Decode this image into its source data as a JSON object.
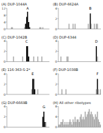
{
  "chart_data": [
    {
      "type": "bar",
      "title": "(A) DUP-1044A",
      "categories": [
        null,
        null,
        null,
        null,
        null,
        null,
        null,
        null,
        null,
        null,
        null,
        null,
        null,
        null,
        null,
        null,
        null,
        null,
        null,
        null,
        null,
        null,
        null,
        null,
        null,
        null,
        null,
        null,
        null,
        null,
        null,
        null,
        null,
        null,
        null,
        null,
        null,
        null,
        null,
        null,
        null,
        null
      ],
      "values": [
        0,
        0,
        0,
        0,
        1,
        1,
        0,
        0,
        0,
        0,
        0,
        0,
        0,
        0,
        0,
        0,
        0,
        1,
        3,
        7,
        10,
        4,
        1,
        0,
        0,
        0,
        0,
        0,
        0,
        0,
        0,
        0,
        1,
        1,
        0,
        1,
        0,
        0,
        0,
        0,
        0,
        0
      ],
      "colors": [
        "#aaaaaa",
        "#aaaaaa",
        "#aaaaaa",
        "#aaaaaa",
        "#aaaaaa",
        "#aaaaaa",
        "#aaaaaa",
        "#aaaaaa",
        "#aaaaaa",
        "#aaaaaa",
        "#aaaaaa",
        "#aaaaaa",
        "#aaaaaa",
        "#aaaaaa",
        "#aaaaaa",
        "#aaaaaa",
        "#aaaaaa",
        "#aaaaaa",
        "#000000",
        "#000000",
        "#000000",
        "#000000",
        "#000000",
        "#aaaaaa",
        "#aaaaaa",
        "#aaaaaa",
        "#aaaaaa",
        "#aaaaaa",
        "#aaaaaa",
        "#aaaaaa",
        "#aaaaaa",
        "#aaaaaa",
        "#aaaaaa",
        "#aaaaaa",
        "#aaaaaa",
        "#aaaaaa",
        "#aaaaaa",
        "#aaaaaa",
        "#aaaaaa",
        "#aaaaaa",
        "#aaaaaa",
        "#aaaaaa"
      ],
      "ylim": [
        0,
        12
      ],
      "yticks": [
        0,
        4,
        8,
        12
      ],
      "tick_labels": "y",
      "annotations": [
        {
          "text": "A",
          "x": 20
        }
      ]
    },
    {
      "type": "bar",
      "title": "(B) DUP-6624A",
      "categories": [
        null,
        null,
        null,
        null,
        null,
        null,
        null,
        null,
        null,
        null,
        null,
        null,
        null,
        null,
        null,
        null,
        null,
        null,
        null,
        null,
        null,
        null,
        null,
        null,
        null,
        null,
        null,
        null,
        null,
        null,
        null,
        null,
        null,
        null,
        null,
        null,
        null,
        null,
        null,
        null,
        null,
        null
      ],
      "values": [
        0,
        0,
        0,
        0,
        0,
        0,
        0,
        0,
        0,
        0,
        1,
        0,
        0,
        0,
        1,
        0,
        1,
        0,
        0,
        0,
        0,
        0,
        0,
        0,
        0,
        0,
        0,
        0,
        0,
        1,
        0,
        3,
        1,
        0,
        0,
        1,
        0,
        1,
        1,
        0,
        0,
        0
      ],
      "colors": [
        "#aaaaaa",
        "#aaaaaa",
        "#aaaaaa",
        "#aaaaaa",
        "#aaaaaa",
        "#aaaaaa",
        "#aaaaaa",
        "#aaaaaa",
        "#aaaaaa",
        "#aaaaaa",
        "#aaaaaa",
        "#aaaaaa",
        "#aaaaaa",
        "#aaaaaa",
        "#aaaaaa",
        "#aaaaaa",
        "#aaaaaa",
        "#aaaaaa",
        "#aaaaaa",
        "#aaaaaa",
        "#aaaaaa",
        "#aaaaaa",
        "#aaaaaa",
        "#aaaaaa",
        "#aaaaaa",
        "#aaaaaa",
        "#aaaaaa",
        "#aaaaaa",
        "#aaaaaa",
        "#aaaaaa",
        "#aaaaaa",
        "#000000",
        "#aaaaaa",
        "#aaaaaa",
        "#aaaaaa",
        "#aaaaaa",
        "#aaaaaa",
        "#aaaaaa",
        "#aaaaaa",
        "#aaaaaa",
        "#aaaaaa",
        "#aaaaaa"
      ],
      "ylim": [
        0,
        4
      ],
      "yticks": [
        0,
        2,
        4
      ],
      "tick_labels": "y",
      "annotations": [
        {
          "text": "B",
          "x": 31
        }
      ]
    },
    {
      "type": "bar",
      "title": "(C) DUP-1042B",
      "categories": [
        null,
        null,
        null,
        null,
        null,
        null,
        null,
        null,
        null,
        null,
        null,
        null,
        null,
        null,
        null,
        null,
        null,
        null,
        null,
        null,
        null,
        null,
        null,
        null,
        null,
        null,
        null,
        null,
        null,
        null,
        null,
        null,
        null,
        null,
        null,
        null,
        null,
        null,
        null,
        null,
        null,
        null
      ],
      "values": [
        0,
        0,
        0,
        0,
        0,
        0,
        1,
        0,
        0,
        0,
        0,
        0,
        0,
        0,
        0,
        1,
        0,
        0,
        0,
        3,
        3,
        1,
        0,
        0,
        0,
        0,
        1,
        0,
        0,
        0,
        1,
        0,
        0,
        0,
        1,
        0,
        0,
        0,
        0,
        0,
        0,
        0
      ],
      "colors": [
        "#aaaaaa",
        "#aaaaaa",
        "#aaaaaa",
        "#aaaaaa",
        "#aaaaaa",
        "#aaaaaa",
        "#aaaaaa",
        "#aaaaaa",
        "#aaaaaa",
        "#aaaaaa",
        "#aaaaaa",
        "#aaaaaa",
        "#aaaaaa",
        "#aaaaaa",
        "#aaaaaa",
        "#aaaaaa",
        "#aaaaaa",
        "#aaaaaa",
        "#aaaaaa",
        "#000000",
        "#000000",
        "#000000",
        "#aaaaaa",
        "#aaaaaa",
        "#aaaaaa",
        "#aaaaaa",
        "#aaaaaa",
        "#aaaaaa",
        "#aaaaaa",
        "#aaaaaa",
        "#aaaaaa",
        "#aaaaaa",
        "#aaaaaa",
        "#aaaaaa",
        "#aaaaaa",
        "#aaaaaa",
        "#aaaaaa",
        "#aaaaaa",
        "#aaaaaa",
        "#aaaaaa",
        "#aaaaaa",
        "#aaaaaa"
      ],
      "ylim": [
        0,
        4
      ],
      "yticks": [
        0,
        2,
        4
      ],
      "tick_labels": "y",
      "annotations": [
        {
          "text": "C",
          "x": 19
        }
      ]
    },
    {
      "type": "bar",
      "title": "(D) DUP-6344",
      "categories": [
        null,
        null,
        null,
        null,
        null,
        null,
        null,
        null,
        null,
        null,
        null,
        null,
        null,
        null,
        null,
        null,
        null,
        null,
        null,
        null,
        null,
        null,
        null,
        null,
        null,
        null,
        null,
        null,
        null,
        null,
        null,
        null,
        null,
        null,
        null,
        null,
        null,
        null,
        null,
        null,
        null,
        null
      ],
      "values": [
        0,
        0,
        1,
        0,
        0,
        0,
        0,
        0,
        1,
        1,
        0,
        0,
        0,
        0,
        0,
        0,
        0,
        0,
        0,
        0,
        0,
        0,
        0,
        0,
        0,
        0,
        0,
        0,
        0,
        0,
        0,
        0,
        0,
        0,
        0,
        0,
        0,
        3,
        1,
        0,
        0,
        0
      ],
      "colors": [
        "#aaaaaa",
        "#aaaaaa",
        "#aaaaaa",
        "#aaaaaa",
        "#aaaaaa",
        "#aaaaaa",
        "#aaaaaa",
        "#aaaaaa",
        "#aaaaaa",
        "#aaaaaa",
        "#aaaaaa",
        "#aaaaaa",
        "#aaaaaa",
        "#aaaaaa",
        "#aaaaaa",
        "#aaaaaa",
        "#aaaaaa",
        "#aaaaaa",
        "#aaaaaa",
        "#aaaaaa",
        "#aaaaaa",
        "#aaaaaa",
        "#aaaaaa",
        "#aaaaaa",
        "#aaaaaa",
        "#aaaaaa",
        "#aaaaaa",
        "#aaaaaa",
        "#aaaaaa",
        "#aaaaaa",
        "#aaaaaa",
        "#aaaaaa",
        "#aaaaaa",
        "#aaaaaa",
        "#aaaaaa",
        "#aaaaaa",
        "#aaaaaa",
        "#000000",
        "#aaaaaa",
        "#aaaaaa",
        "#aaaaaa",
        "#aaaaaa"
      ],
      "ylim": [
        0,
        4
      ],
      "yticks": [
        0,
        2,
        4
      ],
      "tick_labels": "y",
      "annotations": [
        {
          "text": "D",
          "x": 37
        }
      ]
    },
    {
      "type": "bar",
      "title": "(E) 116-363-S-2*",
      "categories": [
        null,
        null,
        null,
        null,
        null,
        null,
        null,
        null,
        null,
        null,
        null,
        null,
        null,
        null,
        null,
        null,
        null,
        null,
        null,
        null,
        null,
        null,
        null,
        null,
        null,
        null,
        null,
        null,
        null,
        null,
        null,
        null,
        null,
        null,
        null,
        null,
        null,
        null,
        null,
        null,
        null,
        null
      ],
      "values": [
        0,
        0,
        0,
        0,
        0,
        0,
        0,
        0,
        0,
        0,
        0,
        0,
        0,
        0,
        0,
        0,
        0,
        0,
        0,
        0,
        0,
        0,
        0,
        0,
        1,
        3,
        3,
        1,
        0,
        0,
        1,
        0,
        0,
        0,
        0,
        0,
        0,
        0,
        0,
        0,
        0,
        0
      ],
      "colors": [
        "#aaaaaa",
        "#aaaaaa",
        "#aaaaaa",
        "#aaaaaa",
        "#aaaaaa",
        "#aaaaaa",
        "#aaaaaa",
        "#aaaaaa",
        "#aaaaaa",
        "#aaaaaa",
        "#aaaaaa",
        "#aaaaaa",
        "#aaaaaa",
        "#aaaaaa",
        "#aaaaaa",
        "#aaaaaa",
        "#aaaaaa",
        "#aaaaaa",
        "#aaaaaa",
        "#aaaaaa",
        "#aaaaaa",
        "#aaaaaa",
        "#aaaaaa",
        "#aaaaaa",
        "#aaaaaa",
        "#000000",
        "#000000",
        "#000000",
        "#aaaaaa",
        "#aaaaaa",
        "#aaaaaa",
        "#aaaaaa",
        "#aaaaaa",
        "#aaaaaa",
        "#aaaaaa",
        "#aaaaaa",
        "#aaaaaa",
        "#aaaaaa",
        "#aaaaaa",
        "#aaaaaa",
        "#aaaaaa",
        "#aaaaaa"
      ],
      "ylim": [
        0,
        4
      ],
      "yticks": [
        0,
        2,
        4
      ],
      "tick_labels": "y",
      "annotations": [
        {
          "text": "E",
          "x": 25
        }
      ]
    },
    {
      "type": "bar",
      "title": "(F) DUP-1038B",
      "categories": [
        null,
        null,
        null,
        null,
        null,
        null,
        null,
        null,
        null,
        null,
        null,
        null,
        null,
        null,
        null,
        null,
        null,
        null,
        null,
        null,
        null,
        null,
        null,
        null,
        null,
        null,
        null,
        null,
        null,
        null,
        null,
        null,
        null,
        null,
        null,
        null,
        null,
        null,
        null,
        null,
        null,
        null
      ],
      "values": [
        0,
        0,
        0,
        1,
        0,
        0,
        0,
        1,
        0,
        0,
        0,
        0,
        0,
        0,
        0,
        0,
        0,
        0,
        0,
        0,
        0,
        0,
        0,
        0,
        0,
        0,
        0,
        0,
        0,
        0,
        0,
        0,
        0,
        0,
        0,
        0,
        0,
        1,
        3,
        1,
        0,
        1
      ],
      "colors": [
        "#aaaaaa",
        "#aaaaaa",
        "#aaaaaa",
        "#aaaaaa",
        "#aaaaaa",
        "#aaaaaa",
        "#aaaaaa",
        "#aaaaaa",
        "#aaaaaa",
        "#aaaaaa",
        "#aaaaaa",
        "#aaaaaa",
        "#aaaaaa",
        "#aaaaaa",
        "#aaaaaa",
        "#aaaaaa",
        "#aaaaaa",
        "#aaaaaa",
        "#aaaaaa",
        "#aaaaaa",
        "#aaaaaa",
        "#aaaaaa",
        "#aaaaaa",
        "#aaaaaa",
        "#aaaaaa",
        "#aaaaaa",
        "#aaaaaa",
        "#aaaaaa",
        "#aaaaaa",
        "#aaaaaa",
        "#aaaaaa",
        "#aaaaaa",
        "#aaaaaa",
        "#aaaaaa",
        "#aaaaaa",
        "#aaaaaa",
        "#aaaaaa",
        "#aaaaaa",
        "#000000",
        "#aaaaaa",
        "#aaaaaa",
        "#aaaaaa"
      ],
      "ylim": [
        0,
        4
      ],
      "yticks": [
        0,
        2,
        4
      ],
      "tick_labels": "y",
      "annotations": [
        {
          "text": "F",
          "x": 38
        }
      ]
    },
    {
      "type": "bar",
      "title": "(G) DUP-6669B",
      "categories": [
        null,
        null,
        null,
        null,
        null,
        null,
        null,
        null,
        null,
        null,
        null,
        null,
        null,
        null,
        null,
        null,
        null,
        null,
        null,
        null,
        null,
        null,
        null,
        null,
        null,
        null,
        null,
        null,
        null,
        null,
        null,
        null,
        null,
        null,
        null,
        null,
        null,
        null,
        null,
        null,
        null,
        null
      ],
      "values": [
        0,
        0,
        0,
        0,
        0,
        0,
        0,
        0,
        0,
        0,
        0,
        0,
        0,
        0,
        0,
        0,
        0,
        0,
        0,
        0,
        0,
        0,
        0,
        0,
        0,
        0,
        0,
        0,
        0,
        0,
        0,
        0,
        0,
        0,
        0,
        2,
        3,
        1,
        1,
        0,
        0,
        0
      ],
      "colors": [
        "#aaaaaa",
        "#aaaaaa",
        "#aaaaaa",
        "#aaaaaa",
        "#aaaaaa",
        "#aaaaaa",
        "#aaaaaa",
        "#aaaaaa",
        "#aaaaaa",
        "#aaaaaa",
        "#aaaaaa",
        "#aaaaaa",
        "#aaaaaa",
        "#aaaaaa",
        "#aaaaaa",
        "#aaaaaa",
        "#aaaaaa",
        "#aaaaaa",
        "#aaaaaa",
        "#aaaaaa",
        "#aaaaaa",
        "#aaaaaa",
        "#aaaaaa",
        "#aaaaaa",
        "#aaaaaa",
        "#aaaaaa",
        "#aaaaaa",
        "#aaaaaa",
        "#aaaaaa",
        "#aaaaaa",
        "#aaaaaa",
        "#aaaaaa",
        "#aaaaaa",
        "#aaaaaa",
        "#aaaaaa",
        "#000000",
        "#000000",
        "#000000",
        "#aaaaaa",
        "#aaaaaa",
        "#aaaaaa",
        "#aaaaaa"
      ],
      "ylim": [
        0,
        4
      ],
      "yticks": [
        0,
        2,
        4
      ],
      "tick_labels": "y",
      "annotations": [
        {
          "text": "G",
          "x": 36
        }
      ]
    },
    {
      "type": "bar",
      "title": "(H) All other ribotypes",
      "categories": [
        null,
        null,
        null,
        null,
        null,
        null,
        null,
        null,
        null,
        null,
        null,
        null,
        null,
        null,
        null,
        null,
        null,
        null,
        null,
        null,
        null,
        null,
        null,
        null,
        null,
        null,
        null,
        null,
        null,
        null,
        null,
        null,
        null,
        null,
        null,
        null,
        null,
        null,
        null,
        null,
        null,
        null
      ],
      "values": [
        1,
        1,
        2,
        2,
        3,
        1,
        2,
        1,
        2,
        1,
        2,
        3,
        2,
        1,
        3,
        2,
        4,
        2,
        3,
        3,
        2,
        4,
        5,
        3,
        4,
        3,
        6,
        4,
        5,
        6,
        7,
        5,
        6,
        5,
        4,
        3,
        5,
        4,
        6,
        3,
        2,
        1
      ],
      "colors": [
        "#aaaaaa",
        "#aaaaaa",
        "#aaaaaa",
        "#aaaaaa",
        "#aaaaaa",
        "#aaaaaa",
        "#aaaaaa",
        "#aaaaaa",
        "#aaaaaa",
        "#aaaaaa",
        "#aaaaaa",
        "#aaaaaa",
        "#aaaaaa",
        "#aaaaaa",
        "#aaaaaa",
        "#aaaaaa",
        "#aaaaaa",
        "#aaaaaa",
        "#aaaaaa",
        "#aaaaaa",
        "#aaaaaa",
        "#aaaaaa",
        "#aaaaaa",
        "#aaaaaa",
        "#aaaaaa",
        "#aaaaaa",
        "#aaaaaa",
        "#aaaaaa",
        "#aaaaaa",
        "#aaaaaa",
        "#aaaaaa",
        "#aaaaaa",
        "#aaaaaa",
        "#aaaaaa",
        "#aaaaaa",
        "#aaaaaa",
        "#aaaaaa",
        "#aaaaaa",
        "#aaaaaa",
        "#aaaaaa",
        "#aaaaaa",
        "#aaaaaa"
      ],
      "ylim": [
        0,
        8
      ],
      "yticks": [
        0,
        4,
        8
      ],
      "tick_labels": "y"
    }
  ]
}
